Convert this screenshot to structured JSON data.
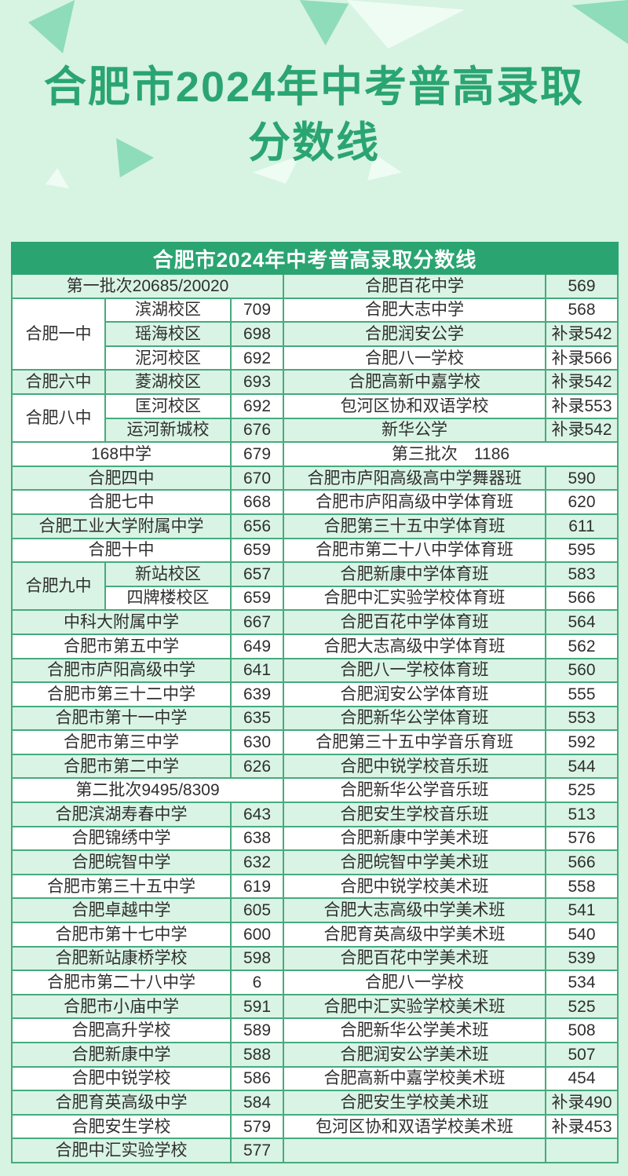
{
  "page": {
    "title": "合肥市2024年中考普高录取分数线",
    "colors": {
      "background": "#d7f3e2",
      "title_green": "#2aa571",
      "header_green": "#2aa471",
      "row_green": "#d9f4e4",
      "row_white": "#ffffff",
      "border_green": "#47aa7e",
      "text_dark": "#2f2f2f",
      "triangle_green": "#8edcba",
      "triangle_white": "#eefcf4"
    }
  },
  "table": {
    "header": "合肥市2024年中考普高录取分数线",
    "rows": [
      {
        "left": {
          "span": "第一批次20685/20020"
        },
        "right": {
          "name": "合肥百花中学",
          "score": "569"
        }
      },
      {
        "left": {
          "group": "合肥一中",
          "rowspan": 3,
          "campus": "滨湖校区",
          "score": "709"
        },
        "right": {
          "name": "合肥大志中学",
          "score": "568"
        }
      },
      {
        "left": {
          "campus": "瑶海校区",
          "score": "698"
        },
        "right": {
          "name": "合肥润安公学",
          "score": "补录542"
        }
      },
      {
        "left": {
          "campus": "泥河校区",
          "score": "692"
        },
        "right": {
          "name": "合肥八一学校",
          "score": "补录566"
        }
      },
      {
        "left": {
          "group": "合肥六中",
          "rowspan": 1,
          "campus": "菱湖校区",
          "score": "693"
        },
        "right": {
          "name": "合肥高新中嘉学校",
          "score": "补录542"
        }
      },
      {
        "left": {
          "group": "合肥八中",
          "rowspan": 2,
          "campus": "匡河校区",
          "score": "692"
        },
        "right": {
          "name": "包河区协和双语学校",
          "score": "补录553"
        }
      },
      {
        "left": {
          "campus": "运河新城校",
          "score": "676"
        },
        "right": {
          "name": "新华公学",
          "score": "补录542"
        }
      },
      {
        "left": {
          "name": "168中学",
          "score": "679"
        },
        "right": {
          "span": "第三批次　1186"
        }
      },
      {
        "left": {
          "name": "合肥四中",
          "score": "670"
        },
        "right": {
          "name": "合肥市庐阳高级高中学舞器班",
          "score": "590"
        }
      },
      {
        "left": {
          "name": "合肥七中",
          "score": "668"
        },
        "right": {
          "name": "合肥市庐阳高级中学体育班",
          "score": "620"
        }
      },
      {
        "left": {
          "name": "合肥工业大学附属中学",
          "score": "656"
        },
        "right": {
          "name": "合肥第三十五中学体育班",
          "score": "611"
        }
      },
      {
        "left": {
          "name": "合肥十中",
          "score": "659"
        },
        "right": {
          "name": "合肥市第二十八中学体育班",
          "score": "595"
        }
      },
      {
        "left": {
          "group": "合肥九中",
          "rowspan": 2,
          "campus": "新站校区",
          "score": "657"
        },
        "right": {
          "name": "合肥新康中学体育班",
          "score": "583"
        }
      },
      {
        "left": {
          "campus": "四牌楼校区",
          "score": "659"
        },
        "right": {
          "name": "合肥中汇实验学校体育班",
          "score": "566"
        }
      },
      {
        "left": {
          "name": "中科大附属中学",
          "score": "667"
        },
        "right": {
          "name": "合肥百花中学体育班",
          "score": "564"
        }
      },
      {
        "left": {
          "name": "合肥市第五中学",
          "score": "649"
        },
        "right": {
          "name": "合肥大志高级中学体育班",
          "score": "562"
        }
      },
      {
        "left": {
          "name": "合肥市庐阳高级中学",
          "score": "641"
        },
        "right": {
          "name": "合肥八一学校体育班",
          "score": "560"
        }
      },
      {
        "left": {
          "name": "合肥市第三十二中学",
          "score": "639"
        },
        "right": {
          "name": "合肥润安公学体育班",
          "score": "555"
        }
      },
      {
        "left": {
          "name": "合肥市第十一中学",
          "score": "635"
        },
        "right": {
          "name": "合肥新华公学体育班",
          "score": "553"
        }
      },
      {
        "left": {
          "name": "合肥市第三中学",
          "score": "630"
        },
        "right": {
          "name": "合肥第三十五中学音乐育班",
          "score": "592"
        }
      },
      {
        "left": {
          "name": "合肥市第二中学",
          "score": "626"
        },
        "right": {
          "name": "合肥中锐学校音乐班",
          "score": "544"
        }
      },
      {
        "left": {
          "span": "第二批次9495/8309"
        },
        "right": {
          "name": "合肥新华公学音乐班",
          "score": "525"
        }
      },
      {
        "left": {
          "name": "合肥滨湖寿春中学",
          "score": "643"
        },
        "right": {
          "name": "合肥安生学校音乐班",
          "score": "513"
        }
      },
      {
        "left": {
          "name": "合肥锦绣中学",
          "score": "638"
        },
        "right": {
          "name": "合肥新康中学美术班",
          "score": "576"
        }
      },
      {
        "left": {
          "name": "合肥皖智中学",
          "score": "632"
        },
        "right": {
          "name": "合肥皖智中学美术班",
          "score": "566"
        }
      },
      {
        "left": {
          "name": "合肥市第三十五中学",
          "score": "619"
        },
        "right": {
          "name": "合肥中锐学校美术班",
          "score": "558"
        }
      },
      {
        "left": {
          "name": "合肥卓越中学",
          "score": "605"
        },
        "right": {
          "name": "合肥大志高级中学美术班",
          "score": "541"
        }
      },
      {
        "left": {
          "name": "合肥市第十七中学",
          "score": "600"
        },
        "right": {
          "name": "合肥育英高级中学美术班",
          "score": "540"
        }
      },
      {
        "left": {
          "name": "合肥新站康桥学校",
          "score": "598"
        },
        "right": {
          "name": "合肥百花中学美术班",
          "score": "539"
        }
      },
      {
        "left": {
          "name": "合肥市第二十八中学",
          "score": "6"
        },
        "right": {
          "name": "合肥八一学校",
          "score": "534"
        }
      },
      {
        "left": {
          "name": "合肥市小庙中学",
          "score": "591"
        },
        "right": {
          "name": "合肥中汇实验学校美术班",
          "score": "525"
        }
      },
      {
        "left": {
          "name": "合肥高升学校",
          "score": "589"
        },
        "right": {
          "name": "合肥新华公学美术班",
          "score": "508"
        }
      },
      {
        "left": {
          "name": "合肥新康中学",
          "score": "588"
        },
        "right": {
          "name": "合肥润安公学美术班",
          "score": "507"
        }
      },
      {
        "left": {
          "name": "合肥中锐学校",
          "score": "586"
        },
        "right": {
          "name": "合肥高新中嘉学校美术班",
          "score": "454"
        }
      },
      {
        "left": {
          "name": "合肥育英高级中学",
          "score": "584"
        },
        "right": {
          "name": "合肥安生学校美术班",
          "score": "补录490"
        }
      },
      {
        "left": {
          "name": "合肥安生学校",
          "score": "579"
        },
        "right": {
          "name": "包河区协和双语学校美术班",
          "score": "补录453"
        }
      },
      {
        "left": {
          "name": "合肥中汇实验学校",
          "score": "577"
        },
        "right": {
          "name": "",
          "score": ""
        }
      }
    ]
  }
}
